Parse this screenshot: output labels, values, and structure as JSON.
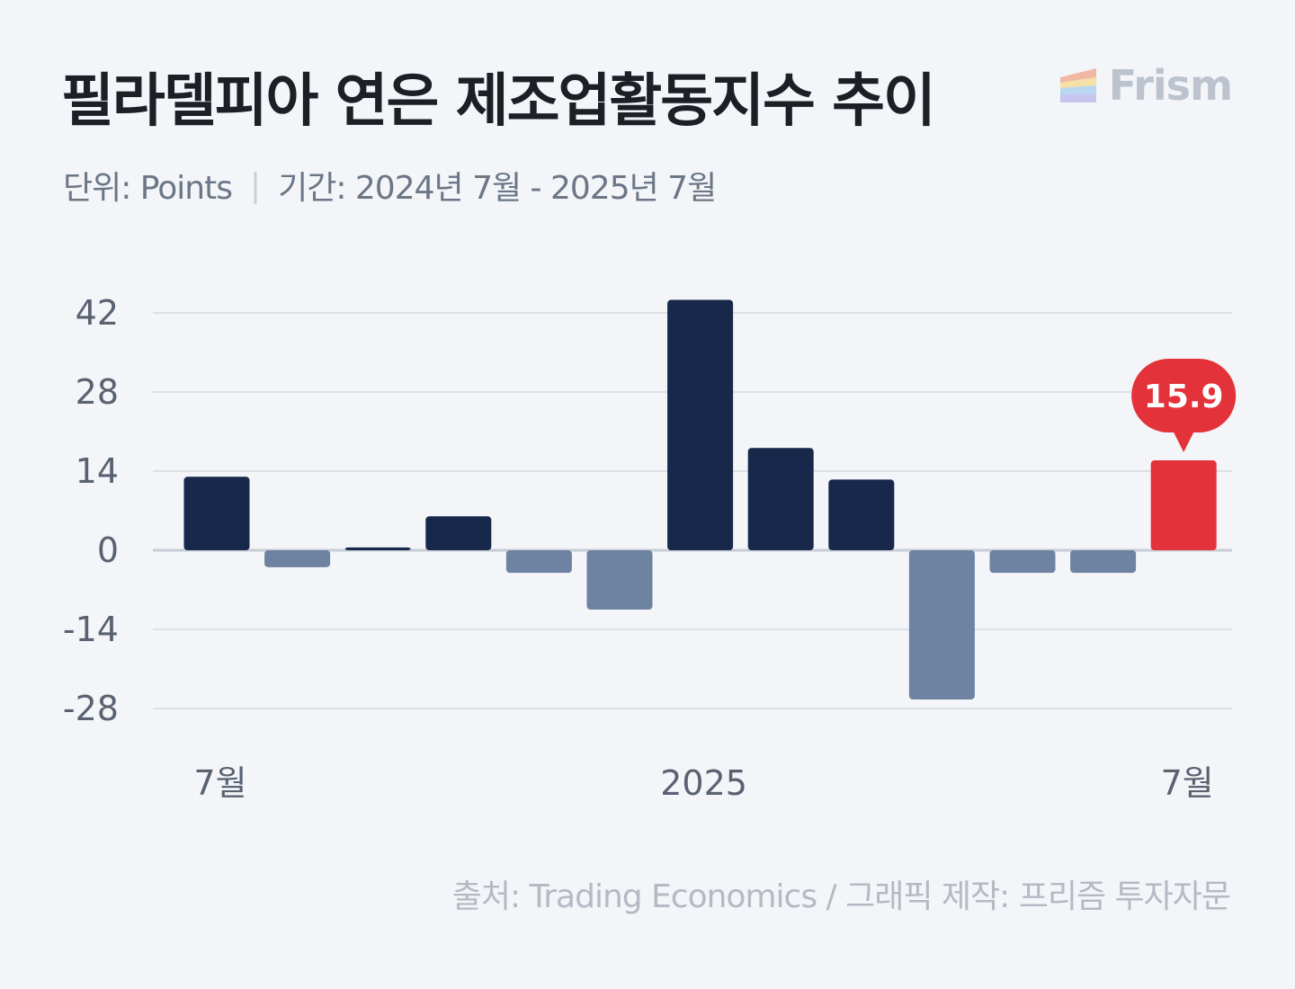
{
  "header": {
    "title": "필라델피아 연은 제조업활동지수 추이",
    "unit_text": "단위: Points",
    "separator": "|",
    "period_text": "기간: 2024년 7월 - 2025년 7월"
  },
  "brand": {
    "name": "Frism",
    "icon": "prism-stripes-icon"
  },
  "source_text": "출처: Trading Economics / 그래픽 제작: 프리즘 투자자문",
  "colors": {
    "positive": "#17284b",
    "negative": "#6e82a1",
    "highlight": "#e3323a",
    "grid": "#d5dae2",
    "zero_line": "#c7ccd6",
    "axis_text": "#5a6272"
  },
  "chart_data": {
    "type": "bar",
    "categories": [
      "2024-07",
      "2024-08",
      "2024-09",
      "2024-10",
      "2024-11",
      "2024-12",
      "2025-01",
      "2025-02",
      "2025-03",
      "2025-04",
      "2025-05",
      "2025-06",
      "2025-07"
    ],
    "values": [
      13.0,
      -3.0,
      0.5,
      6.0,
      -4.0,
      -10.5,
      44.3,
      18.1,
      12.5,
      -26.4,
      -4.0,
      -4.0,
      15.9
    ],
    "ylim": [
      -28,
      42
    ],
    "yticks": [
      42,
      28,
      14,
      0,
      -14,
      -28
    ],
    "x_tick_labels": [
      {
        "index": 0,
        "label": "7월"
      },
      {
        "index": 6,
        "label": "2025"
      },
      {
        "index": 12,
        "label": "7월"
      }
    ],
    "highlight": {
      "index": 12,
      "label": "15.9"
    },
    "grid": true
  }
}
